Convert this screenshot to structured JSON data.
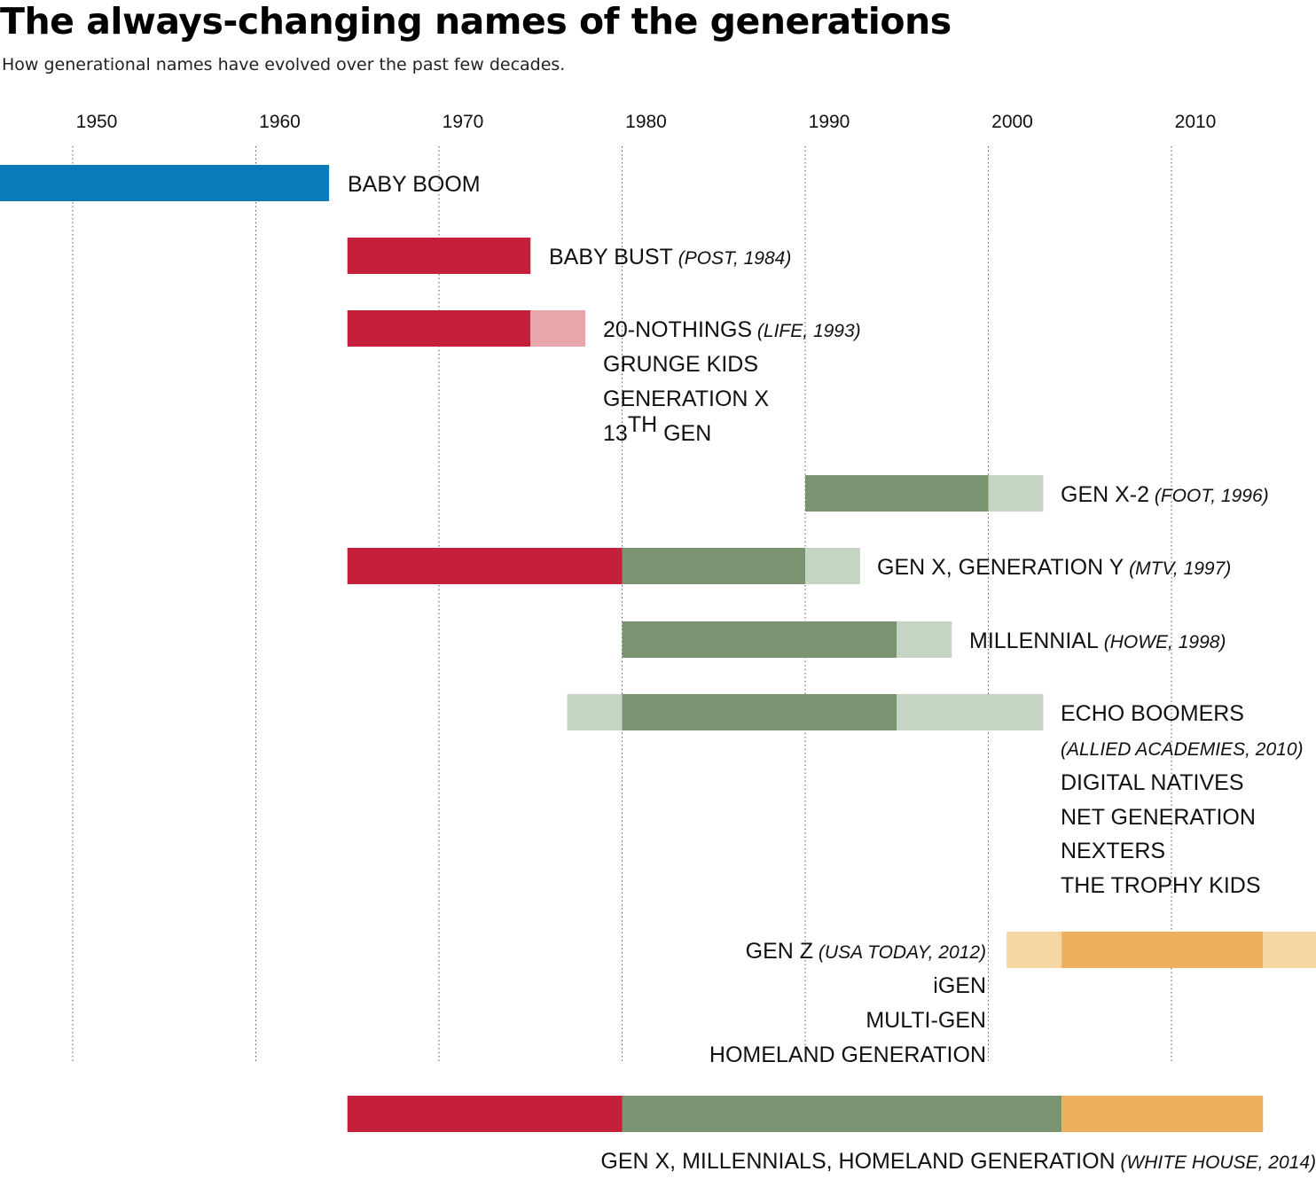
{
  "title": "The always-changing names of the generations",
  "subtitle": "How generational names have evolved over the past few decades.",
  "colors": {
    "baby_boom": "#0a7ab8",
    "gen_x": "#c41f3b",
    "gen_x_light": "#eaa7ab",
    "millennial": "#7a9370",
    "millennial_light": "#c6d5c3",
    "homeland": "#edb05e",
    "homeland_light": "#f6d6a3"
  },
  "chart_data": {
    "type": "bar",
    "orientation": "horizontal",
    "subtype": "timeline",
    "x_axis": {
      "ticks": [
        1950,
        1960,
        1970,
        1980,
        1990,
        2000,
        2010
      ],
      "range": [
        1946,
        2020
      ],
      "grid": "dotted vertical lines"
    },
    "rows": [
      {
        "segments": [
          {
            "start": 1946,
            "end": 1964,
            "color": "baby_boom"
          }
        ],
        "labels": [
          {
            "name": "BABY BOOM",
            "source": ""
          }
        ]
      },
      {
        "segments": [
          {
            "start": 1965,
            "end": 1975,
            "color": "gen_x"
          }
        ],
        "labels": [
          {
            "name": "BABY BUST",
            "source": "(POST, 1984)"
          }
        ]
      },
      {
        "segments": [
          {
            "start": 1965,
            "end": 1975,
            "color": "gen_x"
          },
          {
            "start": 1975,
            "end": 1978,
            "color": "gen_x_light"
          }
        ],
        "labels": [
          {
            "name": "20-NOTHINGS",
            "source": "(LIFE, 1993)"
          },
          {
            "name": "GRUNGE KIDS",
            "source": ""
          },
          {
            "name": "GENERATION X",
            "source": ""
          },
          {
            "name": "13",
            "sup": "TH",
            "name_suffix": " GEN",
            "source": ""
          }
        ]
      },
      {
        "segments": [
          {
            "start": 1990,
            "end": 2000,
            "color": "millennial"
          },
          {
            "start": 2000,
            "end": 2003,
            "color": "millennial_light"
          }
        ],
        "labels": [
          {
            "name": "GEN X-2",
            "source": "(FOOT, 1996)"
          }
        ]
      },
      {
        "segments": [
          {
            "start": 1965,
            "end": 1980,
            "color": "gen_x"
          },
          {
            "start": 1980,
            "end": 1990,
            "color": "millennial"
          },
          {
            "start": 1990,
            "end": 1993,
            "color": "millennial_light"
          }
        ],
        "labels": [
          {
            "name": "GEN X, GENERATION Y",
            "source": "(MTV, 1997)"
          }
        ]
      },
      {
        "segments": [
          {
            "start": 1980,
            "end": 1995,
            "color": "millennial"
          },
          {
            "start": 1995,
            "end": 1998,
            "color": "millennial_light"
          }
        ],
        "labels": [
          {
            "name": "MILLENNIAL",
            "source": "(HOWE, 1998)"
          }
        ]
      },
      {
        "segments": [
          {
            "start": 1977,
            "end": 1980,
            "color": "millennial_light"
          },
          {
            "start": 1980,
            "end": 1995,
            "color": "millennial"
          },
          {
            "start": 1995,
            "end": 2003,
            "color": "millennial_light"
          }
        ],
        "labels": [
          {
            "name": "ECHO BOOMERS",
            "source": ""
          },
          {
            "name": "",
            "source": "(ALLIED ACADEMIES, 2010)"
          },
          {
            "name": "DIGITAL NATIVES",
            "source": ""
          },
          {
            "name": "NET GENERATION",
            "source": ""
          },
          {
            "name": "NEXTERS",
            "source": ""
          },
          {
            "name": "THE TROPHY KIDS",
            "source": ""
          }
        ]
      },
      {
        "segments": [
          {
            "start": 2001,
            "end": 2004,
            "color": "homeland_light"
          },
          {
            "start": 2004,
            "end": 2015,
            "color": "homeland"
          },
          {
            "start": 2015,
            "end": 2020,
            "color": "homeland_light"
          }
        ],
        "labels": [
          {
            "name": "GEN Z",
            "source": "(USA TODAY, 2012)"
          },
          {
            "name": "iGEN",
            "source": ""
          },
          {
            "name": "MULTI-GEN",
            "source": ""
          },
          {
            "name": "HOMELAND GENERATION",
            "source": ""
          }
        ]
      },
      {
        "segments": [
          {
            "start": 1965,
            "end": 1980,
            "color": "gen_x"
          },
          {
            "start": 1980,
            "end": 2004,
            "color": "millennial"
          },
          {
            "start": 2004,
            "end": 2015,
            "color": "homeland"
          }
        ],
        "labels": [
          {
            "name": "GEN X, MILLENNIALS, HOMELAND GENERATION",
            "source": "(WHITE HOUSE, 2014)"
          }
        ]
      }
    ]
  }
}
